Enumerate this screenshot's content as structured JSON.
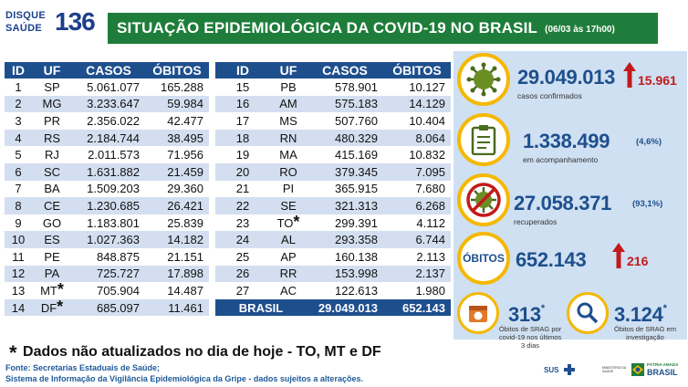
{
  "logo": {
    "line1": "DISQUE",
    "line2": "SAÚDE",
    "number": "136"
  },
  "header": {
    "title": "SITUAÇÃO EPIDEMIOLÓGICA DA COVID-19 NO BRASIL",
    "date": "(06/03 às 17h00)"
  },
  "table_headers": {
    "id": "ID",
    "uf": "UF",
    "casos": "CASOS",
    "obitos": "ÓBITOS"
  },
  "table_left": [
    {
      "id": "1",
      "uf": "SP",
      "casos": "5.061.077",
      "obitos": "165.288",
      "star": ""
    },
    {
      "id": "2",
      "uf": "MG",
      "casos": "3.233.647",
      "obitos": "59.984",
      "star": ""
    },
    {
      "id": "3",
      "uf": "PR",
      "casos": "2.356.022",
      "obitos": "42.477",
      "star": ""
    },
    {
      "id": "4",
      "uf": "RS",
      "casos": "2.184.744",
      "obitos": "38.495",
      "star": ""
    },
    {
      "id": "5",
      "uf": "RJ",
      "casos": "2.011.573",
      "obitos": "71.956",
      "star": ""
    },
    {
      "id": "6",
      "uf": "SC",
      "casos": "1.631.882",
      "obitos": "21.459",
      "star": ""
    },
    {
      "id": "7",
      "uf": "BA",
      "casos": "1.509.203",
      "obitos": "29.360",
      "star": ""
    },
    {
      "id": "8",
      "uf": "CE",
      "casos": "1.230.685",
      "obitos": "26.421",
      "star": ""
    },
    {
      "id": "9",
      "uf": "GO",
      "casos": "1.183.801",
      "obitos": "25.839",
      "star": ""
    },
    {
      "id": "10",
      "uf": "ES",
      "casos": "1.027.363",
      "obitos": "14.182",
      "star": ""
    },
    {
      "id": "11",
      "uf": "PE",
      "casos": "848.875",
      "obitos": "21.151",
      "star": ""
    },
    {
      "id": "12",
      "uf": "PA",
      "casos": "725.727",
      "obitos": "17.898",
      "star": ""
    },
    {
      "id": "13",
      "uf": "MT",
      "casos": "705.904",
      "obitos": "14.487",
      "star": "*"
    },
    {
      "id": "14",
      "uf": "DF",
      "casos": "685.097",
      "obitos": "11.461",
      "star": "*"
    }
  ],
  "table_right": [
    {
      "id": "15",
      "uf": "PB",
      "casos": "578.901",
      "obitos": "10.127",
      "star": ""
    },
    {
      "id": "16",
      "uf": "AM",
      "casos": "575.183",
      "obitos": "14.129",
      "star": ""
    },
    {
      "id": "17",
      "uf": "MS",
      "casos": "507.760",
      "obitos": "10.404",
      "star": ""
    },
    {
      "id": "18",
      "uf": "RN",
      "casos": "480.329",
      "obitos": "8.064",
      "star": ""
    },
    {
      "id": "19",
      "uf": "MA",
      "casos": "415.169",
      "obitos": "10.832",
      "star": ""
    },
    {
      "id": "20",
      "uf": "RO",
      "casos": "379.345",
      "obitos": "7.095",
      "star": ""
    },
    {
      "id": "21",
      "uf": "PI",
      "casos": "365.915",
      "obitos": "7.680",
      "star": ""
    },
    {
      "id": "22",
      "uf": "SE",
      "casos": "321.313",
      "obitos": "6.268",
      "star": ""
    },
    {
      "id": "23",
      "uf": "TO",
      "casos": "299.391",
      "obitos": "4.112",
      "star": "*"
    },
    {
      "id": "24",
      "uf": "AL",
      "casos": "293.358",
      "obitos": "6.744",
      "star": ""
    },
    {
      "id": "25",
      "uf": "AP",
      "casos": "160.138",
      "obitos": "2.113",
      "star": ""
    },
    {
      "id": "26",
      "uf": "RR",
      "casos": "153.998",
      "obitos": "2.137",
      "star": ""
    },
    {
      "id": "27",
      "uf": "AC",
      "casos": "122.613",
      "obitos": "1.980",
      "star": ""
    }
  ],
  "brasil": {
    "label": "BRASIL",
    "casos": "29.049.013",
    "obitos": "652.143"
  },
  "footnote": {
    "star": "*",
    "text": "Dados não atualizados no dia de hoje - TO, MT e DF"
  },
  "source": {
    "line1": "Fonte: Secretarias Estaduais de Saúde;",
    "line2": "Sistema de Informação da Vigilância Epidemiológica da Gripe - dados sujeitos a alterações."
  },
  "stats": {
    "confirmados": {
      "value": "29.049.013",
      "label": "casos confirmados",
      "delta": "15.961",
      "icon": "virus-icon"
    },
    "acompanhamento": {
      "value": "1.338.499",
      "label": "em acompanhamento",
      "pct": "(4,6%)",
      "icon": "clipboard-icon"
    },
    "recuperados": {
      "value": "27.058.371",
      "label": "recuperados",
      "pct": "(93,1%)",
      "icon": "no-virus-icon"
    },
    "obitos": {
      "badge": "ÓBITOS",
      "value": "652.143",
      "delta": "216"
    },
    "srag_obitos": {
      "value": "313",
      "star": "*",
      "caption": [
        "Óbitos de SRAG por",
        "covid-19 nos últimos",
        "3 dias"
      ],
      "icon": "calendar-icon"
    },
    "srag_investigacao": {
      "value": "3.124",
      "star": "*",
      "caption": [
        "Óbitos de SRAG em",
        "investigação"
      ],
      "icon": "magnifier-icon"
    }
  },
  "footer_logos": {
    "sus": "SUS",
    "ministerio": "MINISTÉRIO DA SAÚDE",
    "patria": "PÁTRIA AMADA",
    "brasil": "BRASIL"
  },
  "colors": {
    "green": "#1e7d3a",
    "blue": "#1e4f8d",
    "yellow": "#f5b800",
    "red": "#c21a1a",
    "panel": "#cfe0f2"
  }
}
